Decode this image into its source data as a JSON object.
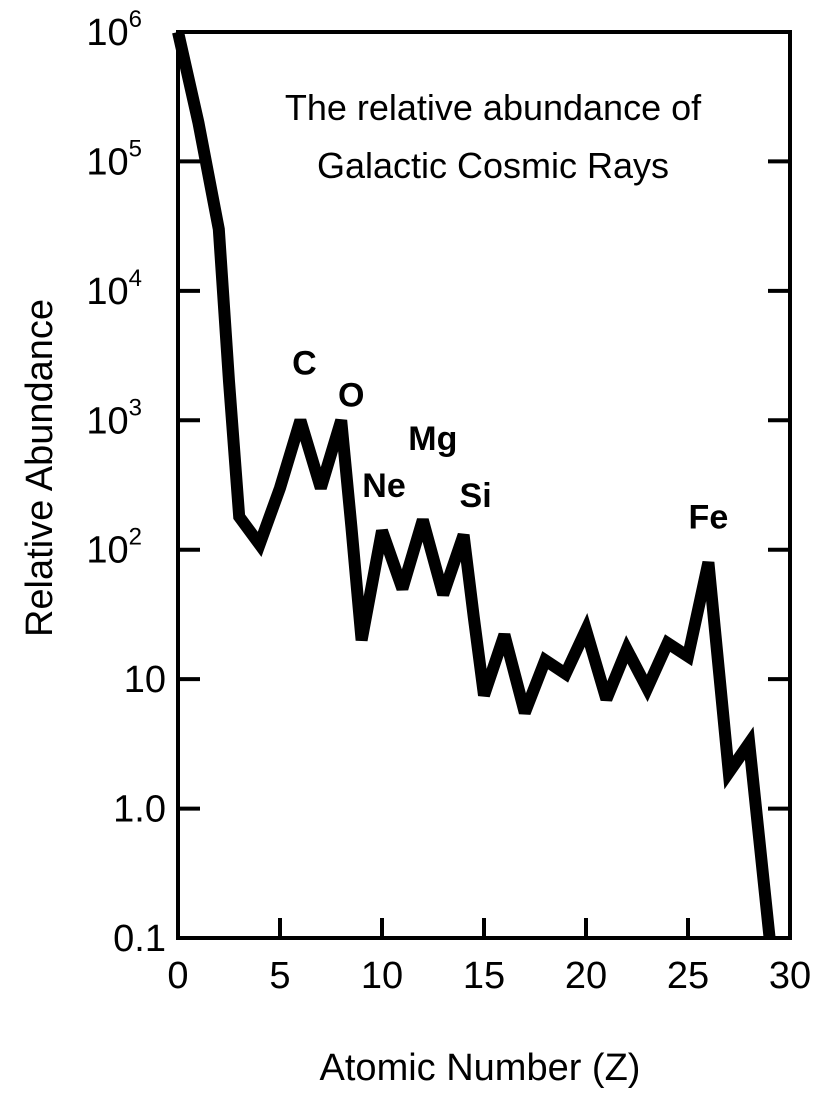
{
  "chart_data": {
    "type": "line",
    "title_lines": [
      "The relative abundance of",
      "Galactic Cosmic Rays"
    ],
    "xlabel": "Atomic Number (Z)",
    "ylabel": "Relative Abundance",
    "x_scale": "linear",
    "y_scale": "log",
    "xlim": [
      0,
      30
    ],
    "ylim": [
      0.1,
      1000000
    ],
    "grid": false,
    "x_ticks": [
      {
        "value": 0,
        "label": "0"
      },
      {
        "value": 5,
        "label": "5"
      },
      {
        "value": 10,
        "label": "10"
      },
      {
        "value": 15,
        "label": "15"
      },
      {
        "value": 20,
        "label": "20"
      },
      {
        "value": 25,
        "label": "25"
      },
      {
        "value": 30,
        "label": "30"
      }
    ],
    "y_ticks": [
      {
        "value": 1000000,
        "base": "10",
        "exp": "6"
      },
      {
        "value": 100000,
        "base": "10",
        "exp": "5"
      },
      {
        "value": 10000,
        "base": "10",
        "exp": "4"
      },
      {
        "value": 1000,
        "base": "10",
        "exp": "3"
      },
      {
        "value": 100,
        "base": "10",
        "exp": "2"
      },
      {
        "value": 10,
        "base": "10",
        "exp": ""
      },
      {
        "value": 1,
        "base": "1.0",
        "exp": ""
      },
      {
        "value": 0.1,
        "base": "0.1",
        "exp": ""
      }
    ],
    "series": [
      {
        "line_color": "#000000",
        "x": [
          0,
          1,
          2,
          2.5,
          3,
          4,
          5,
          6,
          7,
          8,
          8.5,
          9,
          10,
          11,
          12,
          13,
          14,
          14.5,
          15,
          16,
          17,
          18,
          19,
          20,
          21,
          22,
          23,
          24,
          25,
          26,
          27,
          28,
          29
        ],
        "y": [
          1000000,
          200000,
          30000,
          2000,
          180,
          110,
          300,
          1000,
          300,
          1000,
          150,
          20,
          140,
          50,
          170,
          45,
          130,
          30,
          7.5,
          22,
          5.5,
          14,
          11,
          24,
          7,
          17,
          8.5,
          19,
          15,
          80,
          1.9,
          3.2,
          0.1
        ]
      }
    ],
    "annotations": [
      {
        "text": "C",
        "x": 6,
        "y": 1000
      },
      {
        "text": "O",
        "x": 8,
        "y": 1000
      },
      {
        "text": "Ne",
        "x": 10,
        "y": 140
      },
      {
        "text": "Mg",
        "x": 12,
        "y": 170
      },
      {
        "text": "Si",
        "x": 14,
        "y": 130
      },
      {
        "text": "Fe",
        "x": 26,
        "y": 80
      }
    ]
  }
}
